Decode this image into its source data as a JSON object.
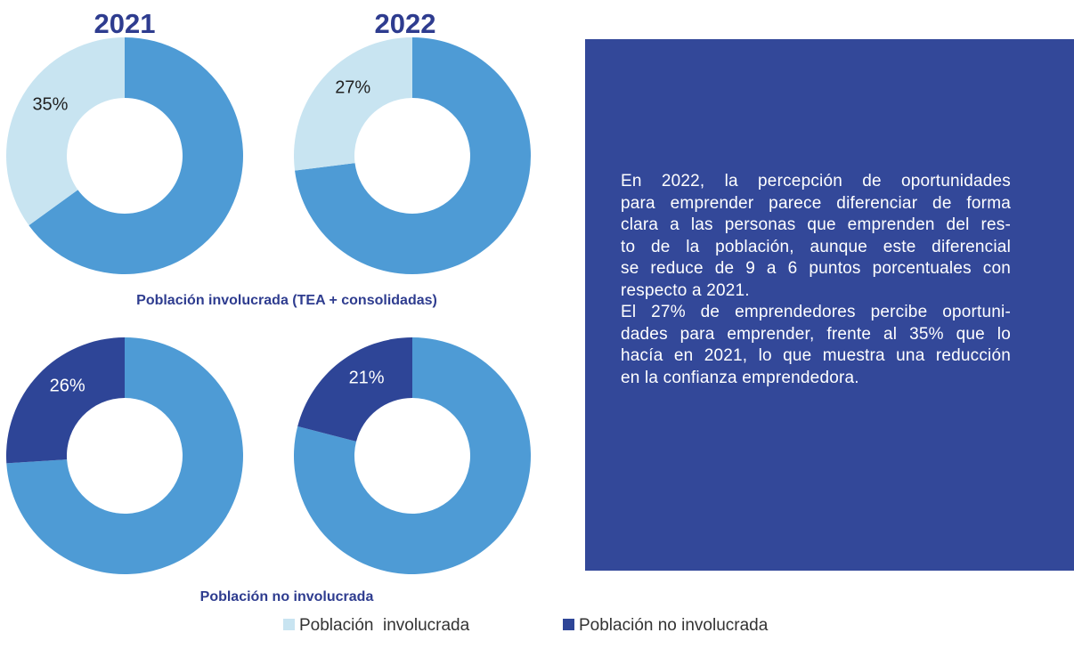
{
  "chart_data": [
    {
      "type": "pie",
      "title": "2021",
      "values": [
        65,
        35
      ],
      "value_labels": [
        null,
        "35%"
      ],
      "colors": [
        "#4e9bd5",
        "#c8e4f1"
      ]
    },
    {
      "type": "pie",
      "title": "2022",
      "values": [
        73,
        27
      ],
      "value_labels": [
        null,
        "27%"
      ],
      "colors": [
        "#4e9bd5",
        "#c8e4f1"
      ]
    },
    {
      "type": "pie",
      "values": [
        74,
        26
      ],
      "value_labels": [
        null,
        "26%"
      ],
      "colors": [
        "#4e9bd5",
        "#2e4597"
      ]
    },
    {
      "type": "pie",
      "values": [
        79,
        21
      ],
      "value_labels": [
        null,
        "21%"
      ],
      "colors": [
        "#4e9bd5",
        "#2e4597"
      ]
    }
  ],
  "row_labels": [
    "Población involucrada (TEA + consolidadas)",
    "Población no involucrada"
  ],
  "legend": [
    {
      "name": "Población  involucrada",
      "color": "#c8e4f1"
    },
    {
      "name": "Población no involucrada",
      "color": "#2e4597"
    }
  ],
  "text_panel": {
    "lines": [
      "En 2022, la percepción de oportunidades",
      "para emprender parece diferenciar de forma",
      "clara a las personas que emprenden del res-",
      "to de la población, aunque este diferencial",
      "se reduce de 9 a 6 puntos porcentuales con",
      "respecto a 2021.",
      "El 27% de emprendedores percibe oportuni-",
      "dades para emprender, frente al 35% que lo",
      "hacía en 2021, lo que muestra una reducción",
      "en la confianza emprendedora."
    ]
  }
}
